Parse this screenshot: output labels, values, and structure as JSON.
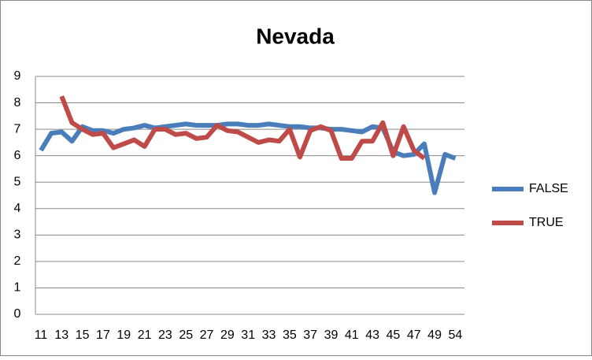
{
  "chart_data": {
    "type": "line",
    "title": "Nevada",
    "categories": [
      "11",
      null,
      "13",
      null,
      "15",
      null,
      "17",
      null,
      "19",
      null,
      "21",
      null,
      "23",
      null,
      "25",
      null,
      "27",
      null,
      "29",
      null,
      "31",
      null,
      "33",
      null,
      "35",
      null,
      "37",
      null,
      "39",
      null,
      "41",
      null,
      "43",
      null,
      "45",
      null,
      "47",
      null,
      "49",
      null,
      "54"
    ],
    "series": [
      {
        "name": "FALSE",
        "color": "#4a7ebb",
        "values": [
          6.2,
          6.85,
          6.9,
          6.55,
          7.1,
          6.95,
          6.95,
          6.85,
          7.0,
          7.05,
          7.15,
          7.05,
          7.1,
          7.15,
          7.2,
          7.15,
          7.15,
          7.15,
          7.2,
          7.2,
          7.15,
          7.15,
          7.2,
          7.15,
          7.1,
          7.1,
          7.05,
          7.05,
          7.0,
          7.0,
          6.95,
          6.9,
          7.1,
          7.05,
          6.15,
          6.0,
          6.05,
          6.45,
          4.6,
          6.05,
          5.9
        ]
      },
      {
        "name": "TRUE",
        "color": "#be4b48",
        "values": [
          null,
          null,
          8.25,
          7.25,
          7.0,
          6.8,
          6.85,
          6.3,
          6.45,
          6.6,
          6.35,
          7.0,
          7.0,
          6.8,
          6.85,
          6.65,
          6.7,
          7.15,
          6.95,
          6.9,
          6.7,
          6.5,
          6.6,
          6.55,
          7.0,
          5.95,
          6.95,
          7.1,
          6.95,
          5.9,
          5.9,
          6.55,
          6.55,
          7.25,
          6.0,
          7.1,
          6.2,
          5.9,
          null,
          null,
          null
        ]
      }
    ],
    "ylim": [
      0,
      9
    ],
    "yticks": [
      0,
      1,
      2,
      3,
      4,
      5,
      6,
      7,
      8,
      9
    ],
    "grid": true,
    "legend": "right"
  }
}
